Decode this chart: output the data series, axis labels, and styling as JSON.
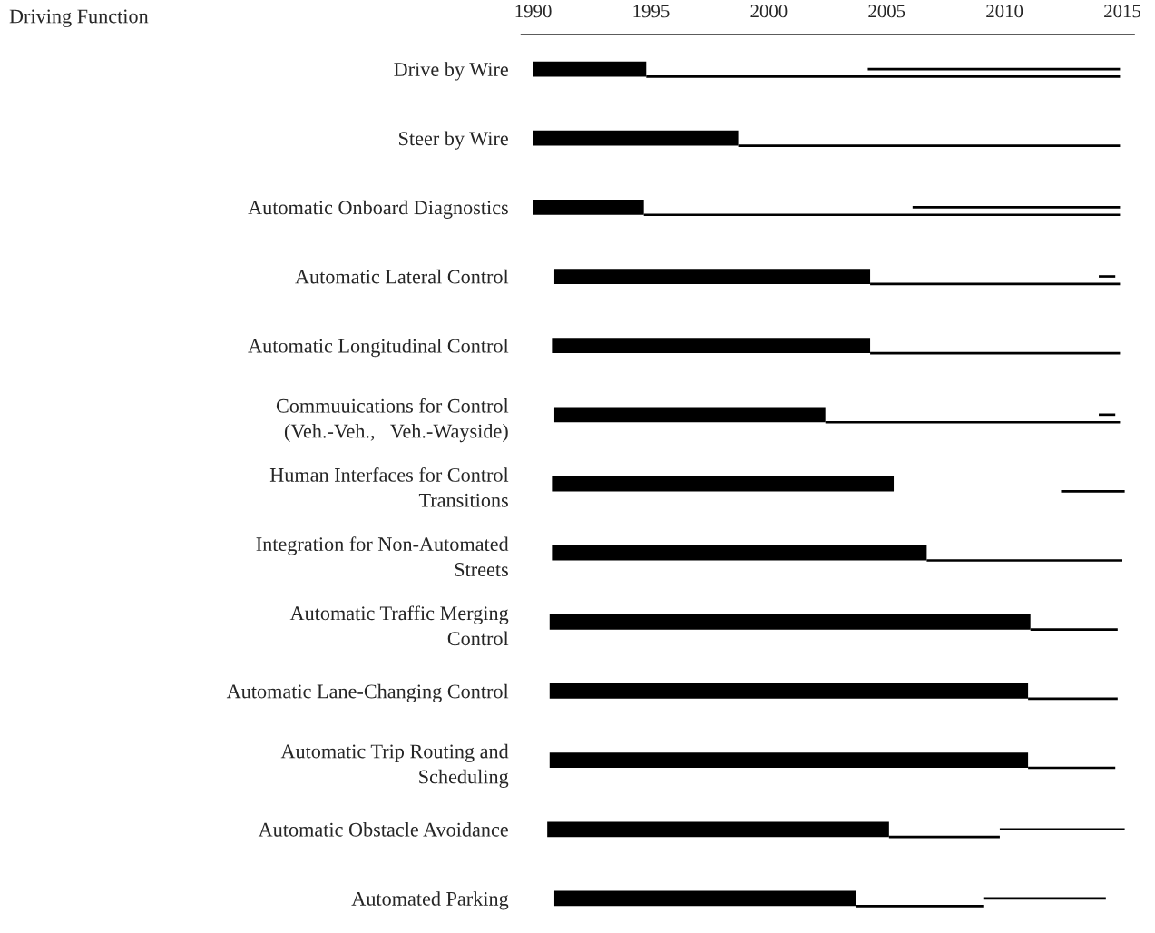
{
  "chart_data": [
    {
      "type": "bar",
      "orientation": "horizontal",
      "ylabel": "Driving Function",
      "categories": [
        "Drive by Wire",
        "Steer by Wire",
        "Automatic Onboard Diagnostics",
        "Automatic Lateral Control",
        "Automatic Longitudinal Control",
        "Commuuications for Control\n(Veh.-Veh.,   Veh.-Wayside)",
        "Human Interfaces for Control\nTransitions",
        "Integration for Non-Automated\nStreets",
        "Automatic Traffic Merging\nControl",
        "Automatic Lane-Changing Control",
        "Automatic Trip Routing and\nScheduling",
        "Automatic Obstacle Avoidance",
        "Automated Parking"
      ],
      "base": [
        1990,
        1990,
        1990,
        1990.9,
        1990.8,
        1990.9,
        1990.8,
        1990.8,
        1990.7,
        1990.7,
        1990.7,
        1990.6,
        1990.9
      ],
      "values": [
        4.8,
        8.7,
        4.7,
        13.4,
        13.5,
        11.5,
        14.5,
        15.9,
        20.4,
        20.3,
        20.3,
        14.5,
        12.8
      ],
      "color": "#000000",
      "xlim": [
        1989.5,
        2015.5
      ],
      "xticks": [
        1990,
        1995,
        2000,
        2005,
        2010,
        2015
      ],
      "grid": false,
      "legend": false
    },
    {
      "type": "bar",
      "orientation": "horizontal",
      "tick_labels": false,
      "base": [
        1994.8,
        1998.7,
        1994.7,
        2004.3,
        2004.3,
        2002.4,
        2012.4,
        2006.7,
        2011.1,
        2011,
        2011,
        2005.1,
        2003.7
      ],
      "values": [
        20.1,
        16.2,
        20.2,
        10.6,
        10.6,
        12.5,
        2.7,
        8.3,
        3.7,
        3.8,
        3.7,
        4.7,
        5.4
      ],
      "color": "#000000",
      "xlim": [
        1989.5,
        2015.5
      ],
      "grid": false,
      "legend": false
    },
    {
      "type": "bar",
      "orientation": "horizontal",
      "tick_labels": false,
      "base": [
        2004.2,
        null,
        2006.1,
        2014,
        null,
        2014,
        null,
        null,
        null,
        null,
        null,
        2009.8,
        2009.1
      ],
      "values": [
        10.7,
        null,
        8.8,
        0.7,
        null,
        0.7,
        null,
        null,
        null,
        null,
        null,
        5.3,
        5.2
      ],
      "color": "#000000",
      "xlim": [
        1989.5,
        2015.5
      ],
      "grid": false,
      "legend": false
    }
  ]
}
